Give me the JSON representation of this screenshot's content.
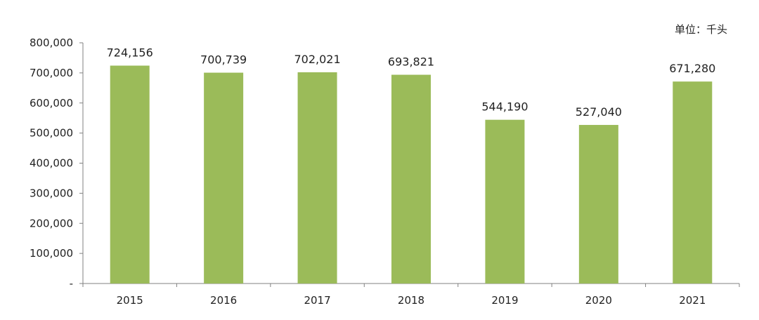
{
  "unit_label": "单位：千头",
  "chart_data": {
    "type": "bar",
    "categories": [
      "2015",
      "2016",
      "2017",
      "2018",
      "2019",
      "2020",
      "2021"
    ],
    "values": [
      724156,
      700739,
      702021,
      693821,
      544190,
      527040,
      671280
    ],
    "data_labels": [
      "724,156",
      "700,739",
      "702,021",
      "693,821",
      "544,190",
      "527,040",
      "671,280"
    ],
    "title": "",
    "xlabel": "",
    "ylabel": "",
    "ylim": [
      0,
      800000
    ],
    "y_ticks": [
      0,
      100000,
      200000,
      300000,
      400000,
      500000,
      600000,
      700000,
      800000
    ],
    "y_tick_labels": [
      "-",
      "100,000",
      "200,000",
      "300,000",
      "400,000",
      "500,000",
      "600,000",
      "700,000",
      "800,000"
    ],
    "grid": false,
    "bar_color": "#9BBB59",
    "axis_color": "#808080"
  }
}
